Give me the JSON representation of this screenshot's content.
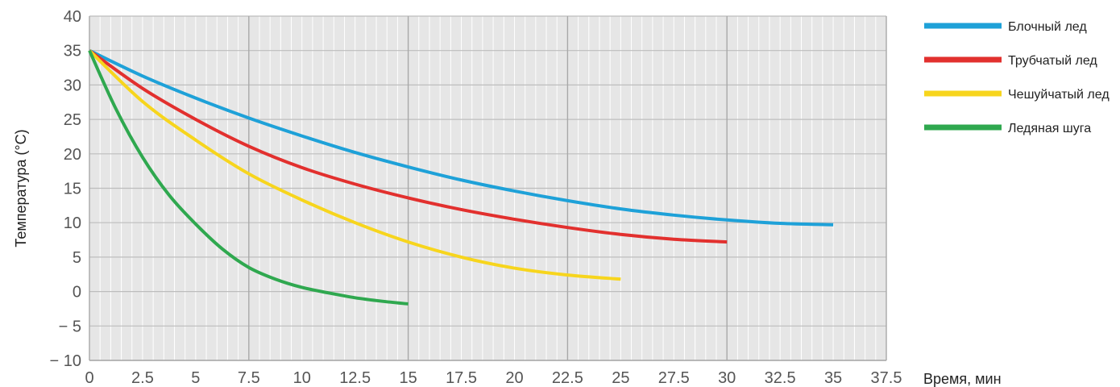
{
  "chart_data": {
    "type": "line",
    "title": "",
    "xlabel": "Время, мин",
    "ylabel": "Температура (°C)",
    "xlim": [
      0,
      37.5
    ],
    "ylim": [
      -10,
      40
    ],
    "x_ticks": [
      0,
      2.5,
      5,
      7.5,
      10,
      12.5,
      15,
      17.5,
      20,
      22.5,
      25,
      27.5,
      30,
      32.5,
      35,
      37.5
    ],
    "x_tick_labels": [
      "0",
      "2.5",
      "5",
      "7.5",
      "10",
      "12.5",
      "15",
      "17.5",
      "20",
      "22.5",
      "25",
      "27.5",
      "30",
      "32.5",
      "35",
      "37.5"
    ],
    "y_ticks": [
      40,
      35,
      30,
      25,
      20,
      15,
      10,
      5,
      0,
      -5,
      -10
    ],
    "y_tick_labels": [
      "40",
      "35",
      "30",
      "25",
      "20",
      "15",
      "10",
      "5",
      "0",
      "− 5",
      "− 10"
    ],
    "grid": true,
    "legend_position": "right",
    "series": [
      {
        "name": "Блочный лед",
        "color": "#1ea1d8",
        "x": [
          0,
          2.5,
          5,
          7.5,
          10,
          12.5,
          15,
          17.5,
          20,
          22.5,
          25,
          27.5,
          30,
          32.5,
          35
        ],
        "y": [
          35,
          31.3,
          28.1,
          25.2,
          22.6,
          20.2,
          18.1,
          16.2,
          14.6,
          13.2,
          12.0,
          11.1,
          10.4,
          9.9,
          9.7
        ]
      },
      {
        "name": "Трубчатый лед",
        "color": "#e2302e",
        "x": [
          0,
          2.5,
          5,
          7.5,
          10,
          12.5,
          15,
          17.5,
          20,
          22.5,
          25,
          27.5,
          30
        ],
        "y": [
          35,
          29.5,
          25.0,
          21.1,
          18.0,
          15.6,
          13.6,
          11.9,
          10.5,
          9.3,
          8.3,
          7.6,
          7.2
        ]
      },
      {
        "name": "Чешуйчатый лед",
        "color": "#f7d51d",
        "x": [
          0,
          2.5,
          5,
          7.5,
          10,
          12.5,
          15,
          17.5,
          20,
          22.5,
          25
        ],
        "y": [
          35,
          27.6,
          22.0,
          17.1,
          13.3,
          10.0,
          7.2,
          5.0,
          3.4,
          2.4,
          1.8
        ]
      },
      {
        "name": "Ледяная шуга",
        "color": "#2fa84f",
        "x": [
          0,
          1.25,
          2.5,
          3.75,
          5,
          6.25,
          7.5,
          8.75,
          10,
          11.25,
          12.5,
          13.75,
          15
        ],
        "y": [
          35,
          26.5,
          19.5,
          14.0,
          9.8,
          6.2,
          3.5,
          1.8,
          0.6,
          -0.2,
          -0.9,
          -1.4,
          -1.8
        ]
      }
    ]
  }
}
